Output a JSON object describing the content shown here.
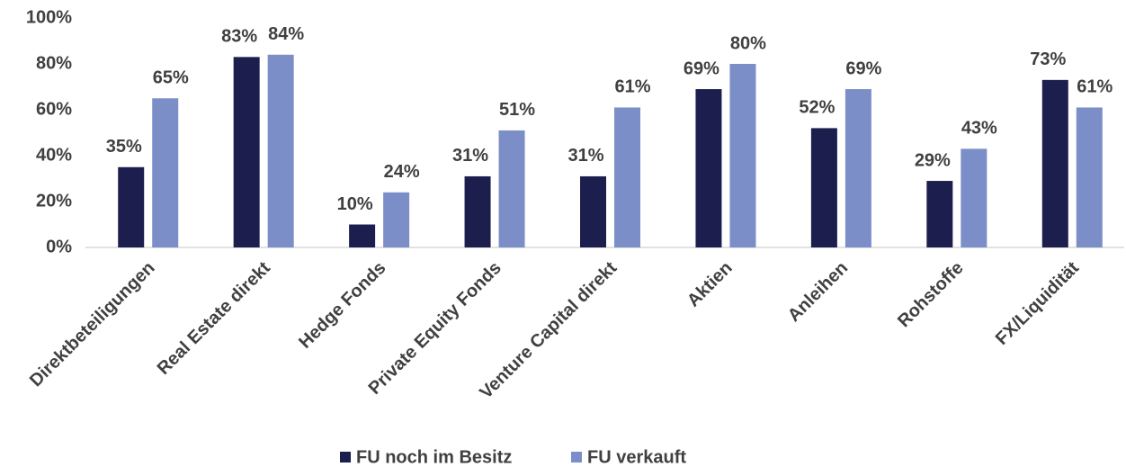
{
  "chart_data": {
    "type": "bar",
    "categories": [
      "Direktbeteiligungen",
      "Real Estate direkt",
      "Hedge Fonds",
      "Private Equity Fonds",
      "Venture Capital direkt",
      "Aktien",
      "Anleihen",
      "Rohstoffe",
      "FX/Liquidität"
    ],
    "series": [
      {
        "name": "FU noch im Besitz",
        "color": "#1c1f4e",
        "values": [
          35,
          83,
          10,
          31,
          31,
          69,
          52,
          29,
          73
        ],
        "value_labels": [
          "35%",
          "83%",
          "10%",
          "31%",
          "31%",
          "69%",
          "52%",
          "29%",
          "73%"
        ]
      },
      {
        "name": "FU verkauft",
        "color": "#7b8ec8",
        "values": [
          65,
          84,
          24,
          51,
          61,
          80,
          69,
          43,
          61
        ],
        "value_labels": [
          "65%",
          "84%",
          "24%",
          "51%",
          "61%",
          "80%",
          "69%",
          "43%",
          "61%"
        ]
      }
    ],
    "ylim": [
      0,
      100
    ],
    "yticks": [
      {
        "value": 0,
        "label": "0%"
      },
      {
        "value": 20,
        "label": "20%"
      },
      {
        "value": 40,
        "label": "40%"
      },
      {
        "value": 60,
        "label": "60%"
      },
      {
        "value": 80,
        "label": "80%"
      },
      {
        "value": 100,
        "label": "100%"
      }
    ],
    "grid": false,
    "legend": "bottom"
  }
}
